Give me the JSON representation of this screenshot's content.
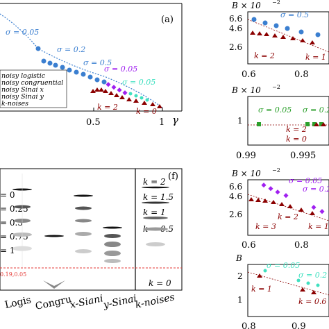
{
  "chart_data": [
    {
      "type": "scatter",
      "panel_label": "(a)",
      "xlabel": "γ",
      "xticks": [
        "0.5",
        "1"
      ],
      "xlim": [
        0.0,
        1.05
      ],
      "legend": [
        "noisy logistic",
        "noisy congruential",
        "noisy Sinai x",
        "noisy Sinai y",
        "k-noises"
      ],
      "annotations": [
        "σ = 0.05",
        "σ = 0.2",
        "σ = 0.5",
        "σ = 0.05",
        "σ = 0.05",
        "k = 2",
        "k = 0"
      ],
      "series": [
        {
          "name": "noisy logistic",
          "color": "#3b7fd0",
          "x": [
            0.02,
            0.1,
            0.18,
            0.25,
            0.31,
            0.36,
            0.41,
            0.46,
            0.5,
            0.54,
            0.58,
            0.62,
            0.66,
            0.7,
            0.74,
            0.78,
            0.82,
            0.86,
            0.9,
            0.94,
            0.98
          ]
        },
        {
          "name": "noisy Sinai x",
          "color": "#a020f0",
          "x": [
            0.58,
            0.62,
            0.66,
            0.7,
            0.74,
            0.78,
            0.82,
            0.86,
            0.9,
            0.94,
            0.98
          ]
        },
        {
          "name": "noisy Sinai y",
          "color": "#40e0c0",
          "x": [
            0.78,
            0.82,
            0.86,
            0.9,
            0.94,
            0.98
          ]
        },
        {
          "name": "k-noises",
          "color": "#8b0000",
          "x": [
            0.58,
            0.61,
            0.64,
            0.67,
            0.7,
            0.74,
            0.78,
            0.82,
            0.86,
            0.9,
            0.94,
            0.98
          ]
        }
      ]
    },
    {
      "type": "violin",
      "panel_label": "(f)",
      "categories": [
        "Logis",
        "Congru",
        "x-Siani",
        "y-Sinai",
        "k-noises"
      ],
      "left_labels": [
        "= 0",
        "= 0.25",
        "= 0.5",
        "= 0.75",
        "= 1"
      ],
      "right_labels": [
        "k = 2",
        "k = 1.5",
        "k = 1",
        "k = 0.5",
        "k = 0"
      ],
      "threshold_label": "0.19,0.05"
    },
    {
      "type": "scatter",
      "ytitle": "B × 10",
      "yexp": "−2",
      "yticks": [
        "6.6",
        "4.6",
        "2.6"
      ],
      "xticks": [
        "0.6",
        "0.8"
      ],
      "annotations": [
        "σ = 0.5",
        "k = 2",
        "k = 1"
      ],
      "series": [
        {
          "name": "noisy logistic",
          "color": "#3b7fd0",
          "y": [
            6.2,
            5.8,
            5.2,
            4.8,
            4.4,
            3.9
          ]
        },
        {
          "name": "k-noises",
          "color": "#8b0000",
          "y": [
            4.2,
            4.0,
            3.8,
            3.6,
            3.4,
            3.1,
            2.8,
            2.4,
            2.1,
            1.9
          ]
        }
      ]
    },
    {
      "type": "scatter",
      "ytitle": "B × 10",
      "yexp": "−2",
      "yticks": [
        "1"
      ],
      "xticks": [
        "0.99",
        "0.995"
      ],
      "annotations": [
        "σ = 0.05",
        "σ = 0.2",
        "k = 2",
        "k = 0"
      ],
      "series": [
        {
          "name": "noisy congruential",
          "color": "#2ca02c",
          "y": [
            0.95,
            0.96,
            0.96,
            0.97,
            0.97
          ]
        },
        {
          "name": "k-noises",
          "color": "#8b0000",
          "y": [
            0.95,
            0.95
          ]
        }
      ]
    },
    {
      "type": "scatter",
      "ytitle": "B × 10",
      "yexp": "−2",
      "yticks": [
        "6.6",
        "4.6",
        "2.6"
      ],
      "xticks": [
        "0.6",
        "0.8"
      ],
      "annotations": [
        "σ = 0.05",
        "σ = 0.2",
        "k = 2",
        "k = 3",
        "k = 1"
      ],
      "series": [
        {
          "name": "noisy Sinai x",
          "color": "#a020f0",
          "y": [
            5.8,
            5.4,
            4.9,
            4.4,
            4.0,
            3.6
          ]
        },
        {
          "name": "k-noises",
          "color": "#8b0000",
          "y": [
            3.9,
            3.6,
            3.4,
            3.3,
            3.0,
            2.7,
            2.4,
            2.0
          ]
        }
      ]
    },
    {
      "type": "scatter",
      "ytitle": "B",
      "yticks": [
        "2",
        "1"
      ],
      "xticks": [
        "0.8",
        "0.9"
      ],
      "annotations": [
        "σ = 0.05",
        "σ = 0.2",
        "k = 1",
        "k = 0.6"
      ],
      "series": [
        {
          "name": "noisy Sinai y",
          "color": "#40e0c0",
          "y": [
            2.3,
            2.2,
            2.0,
            1.9,
            1.7
          ]
        },
        {
          "name": "k-noises",
          "color": "#8b0000",
          "y": [
            1.5,
            1.4,
            1.3,
            1.2,
            1.05
          ]
        }
      ]
    }
  ]
}
